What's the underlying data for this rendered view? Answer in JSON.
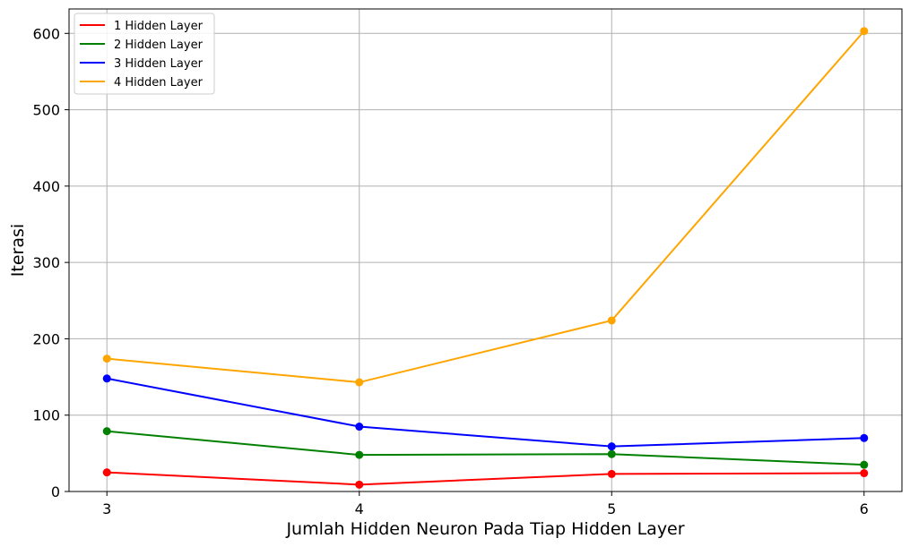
{
  "chart_data": {
    "type": "line",
    "title": "",
    "xlabel": "Jumlah Hidden Neuron Pada Tiap Hidden Layer",
    "ylabel": "Iterasi",
    "x": [
      3,
      4,
      5,
      6
    ],
    "xticks": [
      "3",
      "4",
      "5",
      "6"
    ],
    "yticks": [
      "0",
      "100",
      "200",
      "300",
      "400",
      "500",
      "600"
    ],
    "xlim": [
      2.85,
      6.15
    ],
    "ylim": [
      0,
      632
    ],
    "grid": true,
    "legend_position": "top-left",
    "series": [
      {
        "name": "1 Hidden Layer",
        "color": "#ff0000",
        "values": [
          25,
          9,
          23,
          24
        ]
      },
      {
        "name": "2 Hidden Layer",
        "color": "#008000",
        "values": [
          79,
          48,
          49,
          35
        ]
      },
      {
        "name": "3 Hidden Layer",
        "color": "#0000ff",
        "values": [
          148,
          85,
          59,
          70
        ]
      },
      {
        "name": "4 Hidden Layer",
        "color": "#ffa500",
        "values": [
          174,
          143,
          224,
          603
        ]
      }
    ]
  }
}
